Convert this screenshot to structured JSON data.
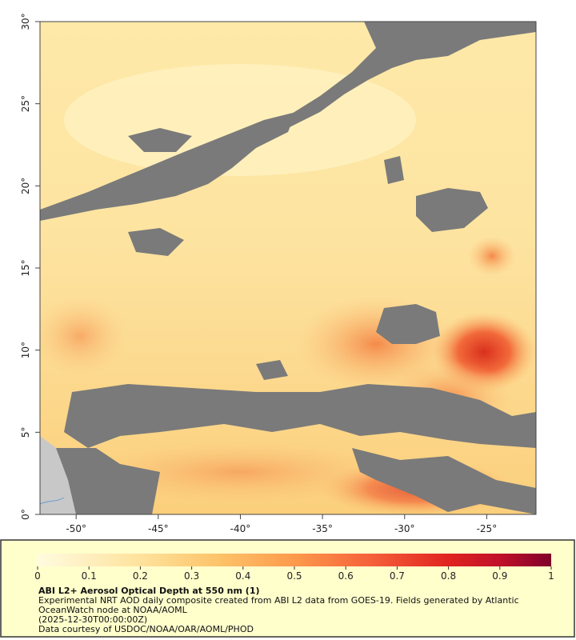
{
  "map": {
    "xlim": [
      -52.2,
      -22
    ],
    "ylim": [
      0,
      30
    ],
    "xticks": [
      {
        "value": -50,
        "label": "-50°"
      },
      {
        "value": -45,
        "label": "-45°"
      },
      {
        "value": -40,
        "label": "-40°"
      },
      {
        "value": -35,
        "label": "-35°"
      },
      {
        "value": -30,
        "label": "-30°"
      },
      {
        "value": -25,
        "label": "-25°"
      }
    ],
    "yticks": [
      {
        "value": 0,
        "label": "0°"
      },
      {
        "value": 5,
        "label": "5°"
      },
      {
        "value": 10,
        "label": "10°"
      },
      {
        "value": 15,
        "label": "15°"
      },
      {
        "value": 20,
        "label": "20°"
      },
      {
        "value": 25,
        "label": "25°"
      },
      {
        "value": 30,
        "label": "30°"
      }
    ]
  },
  "colorbar": {
    "lim": [
      0,
      1
    ],
    "ticks": [
      0,
      0.1,
      0.2,
      0.3,
      0.4,
      0.5,
      0.6,
      0.7,
      0.8,
      0.9,
      1
    ]
  },
  "caption": {
    "title": "ABI L2+ Aerosol Optical Depth at 550 nm (1)",
    "description": "Experimental NRT AOD daily composite created from ABI L2 data from GOES-19. Fields generated by Atlantic OceanWatch node at NOAA/AOML",
    "time": "(2025-12-30T00:00:00Z)",
    "credit": "Data courtesy of USDOC/NOAA/OAR/AOML/PHOD"
  }
}
